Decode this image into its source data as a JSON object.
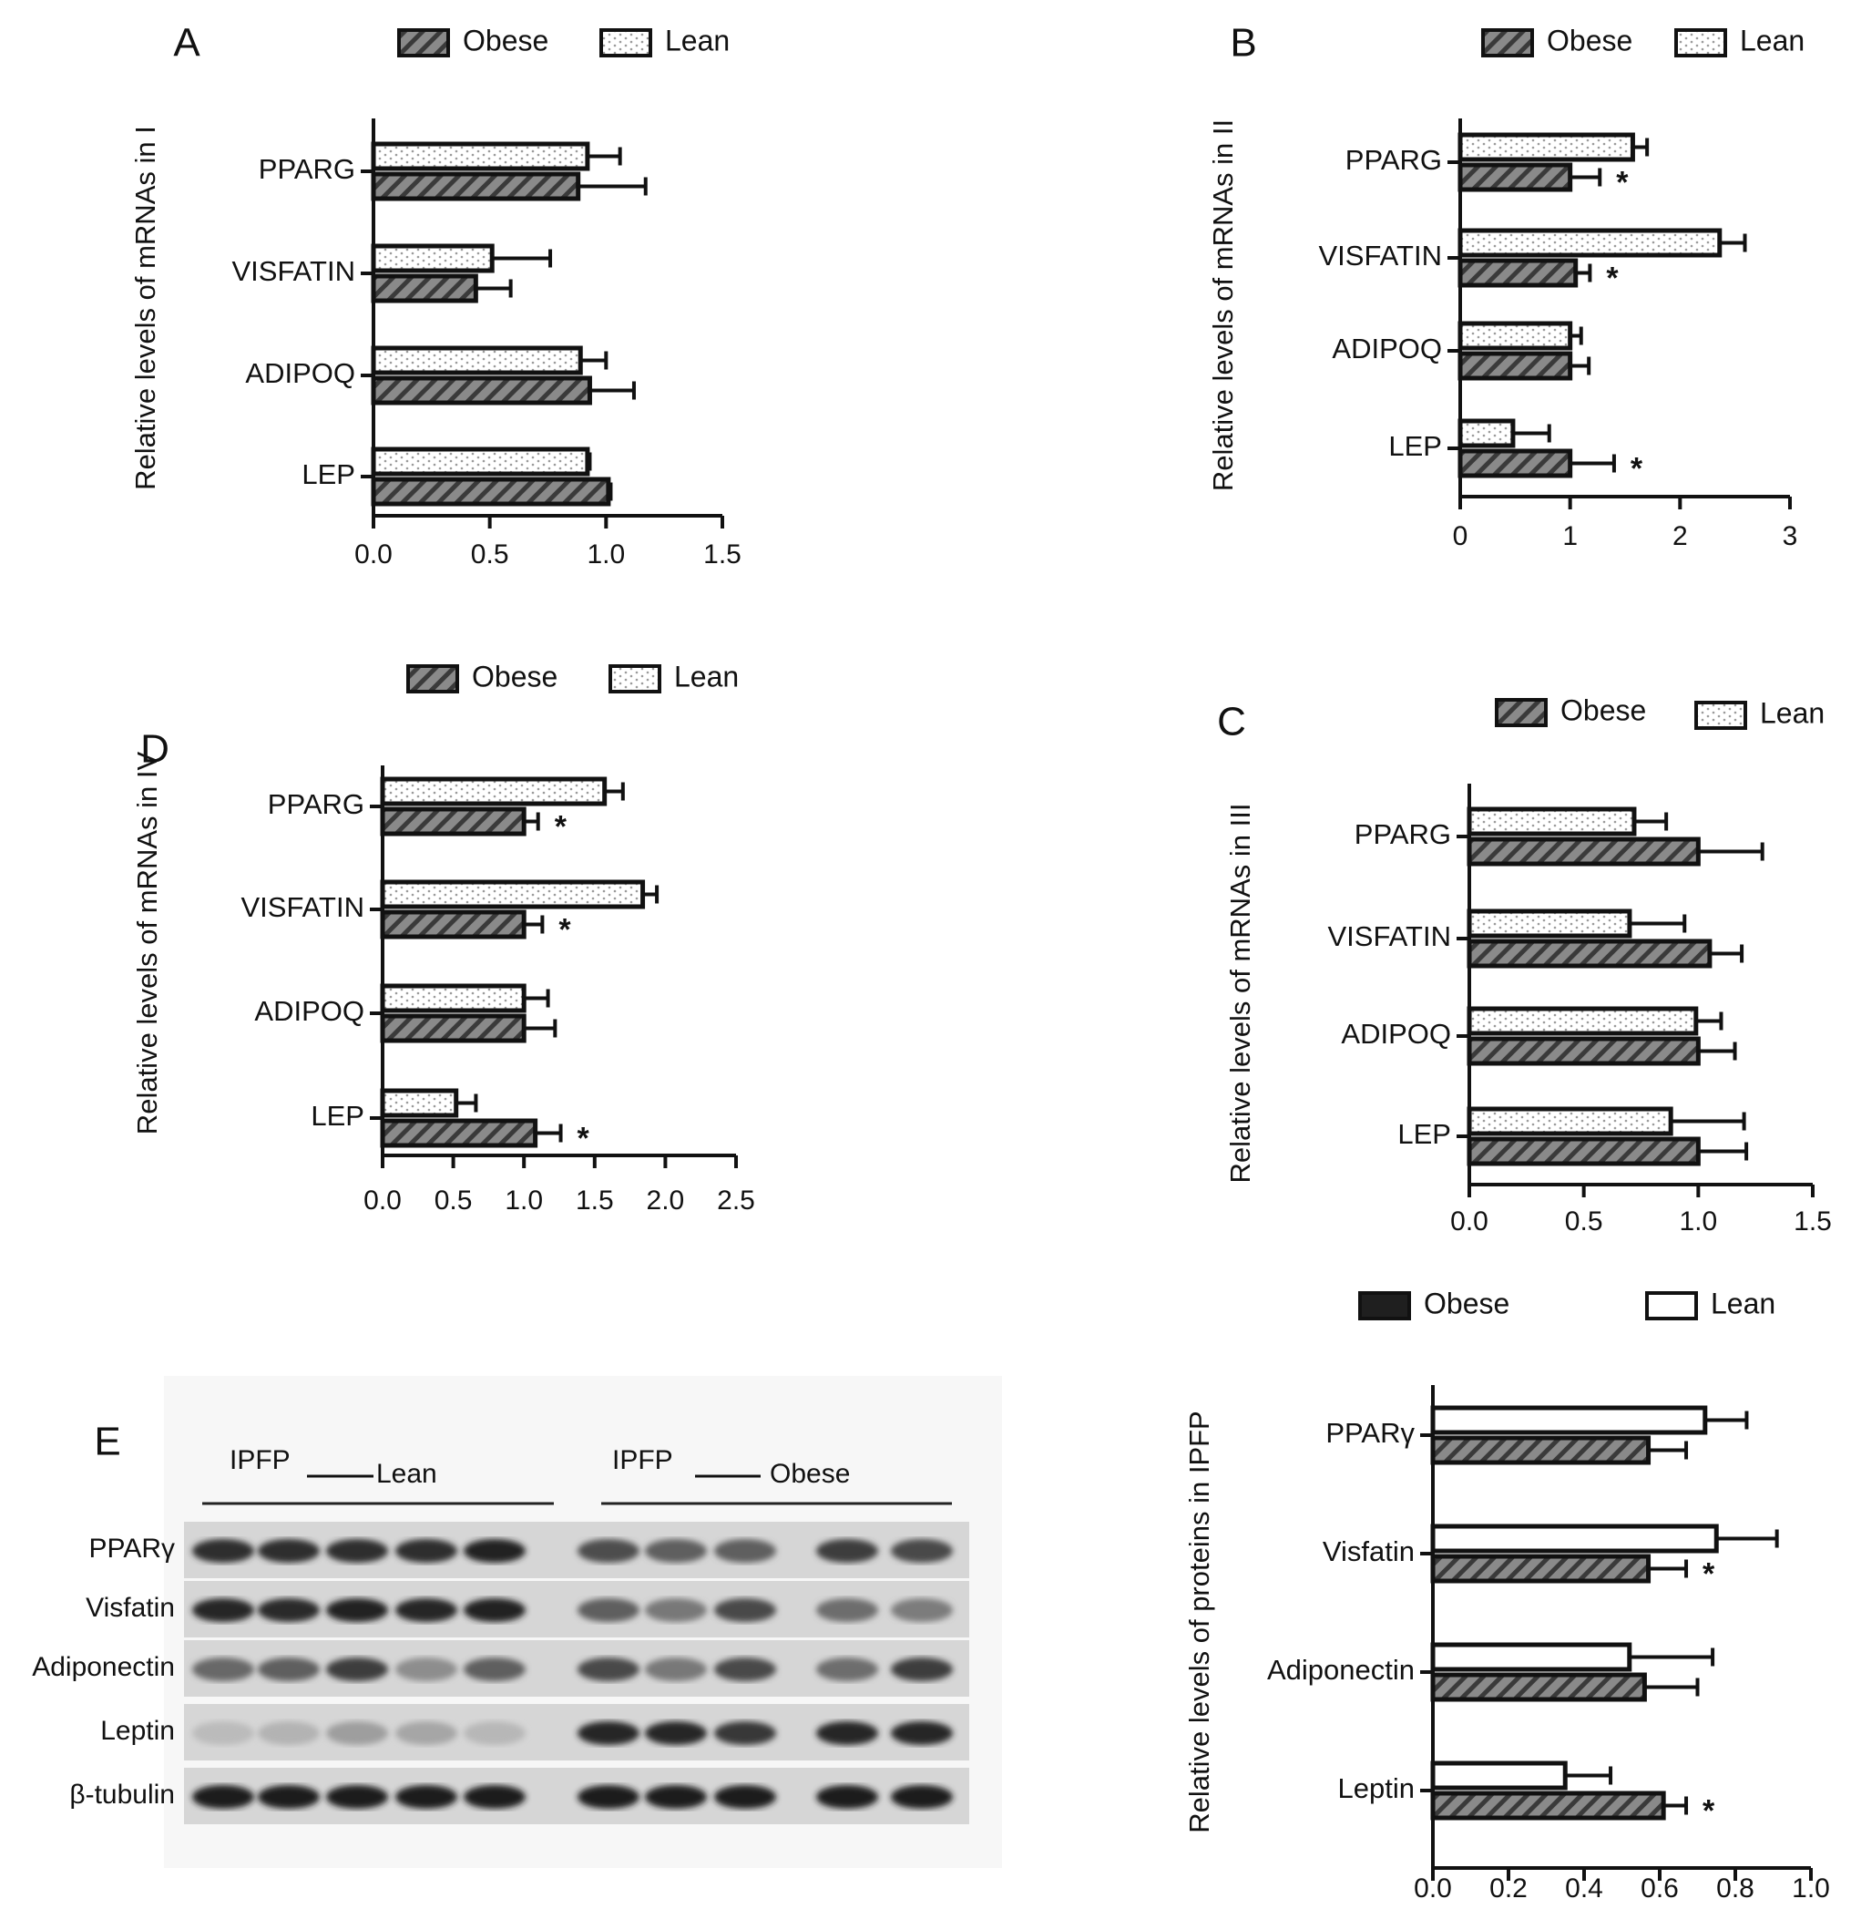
{
  "figure": {
    "legend": {
      "obese": "Obese",
      "lean": "Lean"
    },
    "significance_mark": "*"
  },
  "chart_data": [
    {
      "id": "A",
      "panel_label": "A",
      "type": "bar",
      "orientation": "horizontal",
      "ylabel": "Relative levels of mRNAs in I",
      "categories": [
        "PPARG",
        "VISFATIN",
        "ADIPOQ",
        "LEP"
      ],
      "series": [
        {
          "name": "Lean",
          "values": [
            0.92,
            0.51,
            0.89,
            0.92
          ],
          "errors": [
            0.14,
            0.25,
            0.11,
            0.01
          ],
          "significant": [
            false,
            false,
            false,
            false
          ]
        },
        {
          "name": "Obese",
          "values": [
            0.88,
            0.44,
            0.93,
            1.01
          ],
          "errors": [
            0.29,
            0.15,
            0.19,
            0.01
          ],
          "significant": [
            false,
            false,
            false,
            false
          ]
        }
      ],
      "xlim": [
        0,
        1.5
      ],
      "ticks": [
        "0.0",
        "0.5",
        "1.0",
        "1.5"
      ],
      "legend_position": "top"
    },
    {
      "id": "B",
      "panel_label": "B",
      "type": "bar",
      "orientation": "horizontal",
      "ylabel": "Relative levels of mRNAs in II",
      "categories": [
        "PPARG",
        "VISFATIN",
        "ADIPOQ",
        "LEP"
      ],
      "series": [
        {
          "name": "Lean",
          "values": [
            1.57,
            2.36,
            1.0,
            0.48
          ],
          "errors": [
            0.13,
            0.23,
            0.1,
            0.33
          ],
          "significant": [
            false,
            false,
            false,
            false
          ]
        },
        {
          "name": "Obese",
          "values": [
            1.0,
            1.05,
            1.0,
            1.0
          ],
          "errors": [
            0.27,
            0.13,
            0.17,
            0.4
          ],
          "significant": [
            true,
            true,
            false,
            true
          ]
        }
      ],
      "xlim": [
        0,
        3
      ],
      "ticks": [
        "0",
        "1",
        "2",
        "3"
      ],
      "legend_position": "top"
    },
    {
      "id": "C",
      "panel_label": "C",
      "type": "bar",
      "orientation": "horizontal",
      "ylabel": "Relative levels of mRNAs in III",
      "categories": [
        "PPARG",
        "VISFATIN",
        "ADIPOQ",
        "LEP"
      ],
      "series": [
        {
          "name": "Lean",
          "values": [
            0.72,
            0.7,
            0.99,
            0.88
          ],
          "errors": [
            0.14,
            0.24,
            0.11,
            0.32
          ],
          "significant": [
            false,
            false,
            false,
            false
          ]
        },
        {
          "name": "Obese",
          "values": [
            1.0,
            1.05,
            1.0,
            1.0
          ],
          "errors": [
            0.28,
            0.14,
            0.16,
            0.21
          ],
          "significant": [
            false,
            false,
            false,
            false
          ]
        }
      ],
      "xlim": [
        0,
        1.5
      ],
      "ticks": [
        "0.0",
        "0.5",
        "1.0",
        "1.5"
      ],
      "legend_position": "top"
    },
    {
      "id": "D",
      "panel_label": "D",
      "type": "bar",
      "orientation": "horizontal",
      "ylabel": "Relative levels of mRNAs in IV",
      "categories": [
        "PPARG",
        "VISFATIN",
        "ADIPOQ",
        "LEP"
      ],
      "series": [
        {
          "name": "Lean",
          "values": [
            1.57,
            1.84,
            1.0,
            0.52
          ],
          "errors": [
            0.13,
            0.1,
            0.17,
            0.14
          ],
          "significant": [
            false,
            false,
            false,
            false
          ]
        },
        {
          "name": "Obese",
          "values": [
            1.0,
            1.0,
            1.0,
            1.08
          ],
          "errors": [
            0.1,
            0.13,
            0.22,
            0.18
          ],
          "significant": [
            true,
            true,
            false,
            true
          ]
        }
      ],
      "xlim": [
        0,
        2.5
      ],
      "ticks": [
        "0.0",
        "0.5",
        "1.0",
        "1.5",
        "2.0",
        "2.5"
      ],
      "legend_position": "top"
    },
    {
      "id": "E",
      "type": "bar",
      "orientation": "horizontal",
      "ylabel": "Relative levels of proteins in IPFP",
      "categories": [
        "PPARγ",
        "Visfatin",
        "Adiponectin",
        "Leptin"
      ],
      "series": [
        {
          "name": "Lean",
          "values": [
            0.72,
            0.75,
            0.52,
            0.35
          ],
          "errors": [
            0.11,
            0.16,
            0.22,
            0.12
          ],
          "significant": [
            false,
            false,
            false,
            false
          ]
        },
        {
          "name": "Obese",
          "values": [
            0.57,
            0.57,
            0.56,
            0.61
          ],
          "errors": [
            0.1,
            0.1,
            0.14,
            0.06
          ],
          "significant": [
            false,
            true,
            false,
            true
          ]
        }
      ],
      "xlim": [
        0,
        1.0
      ],
      "ticks": [
        "0.0",
        "0.2",
        "0.4",
        "0.6",
        "0.8",
        "1.0"
      ],
      "legend_position": "top"
    }
  ],
  "western_blot": {
    "panel_label": "E",
    "group_lean": {
      "prefix": "IPFP",
      "name": "Lean"
    },
    "group_obese": {
      "prefix": "IPFP",
      "name": "Obese"
    },
    "rows": [
      {
        "label": "PPARγ",
        "intensities": [
          0.85,
          0.85,
          0.85,
          0.85,
          0.9,
          0.7,
          0.62,
          0.62,
          0.78,
          0.72
        ]
      },
      {
        "label": "Visfatin",
        "intensities": [
          0.88,
          0.86,
          0.92,
          0.88,
          0.92,
          0.62,
          0.5,
          0.72,
          0.55,
          0.48
        ]
      },
      {
        "label": "Adiponectin",
        "intensities": [
          0.58,
          0.62,
          0.78,
          0.4,
          0.62,
          0.72,
          0.5,
          0.72,
          0.55,
          0.78
        ]
      },
      {
        "label": "Leptin",
        "intensities": [
          0.18,
          0.22,
          0.32,
          0.28,
          0.2,
          0.88,
          0.88,
          0.8,
          0.88,
          0.88
        ]
      },
      {
        "label": "β-tubulin",
        "intensities": [
          0.95,
          0.95,
          0.95,
          0.95,
          0.95,
          0.95,
          0.95,
          0.95,
          0.95,
          0.95
        ]
      }
    ]
  }
}
